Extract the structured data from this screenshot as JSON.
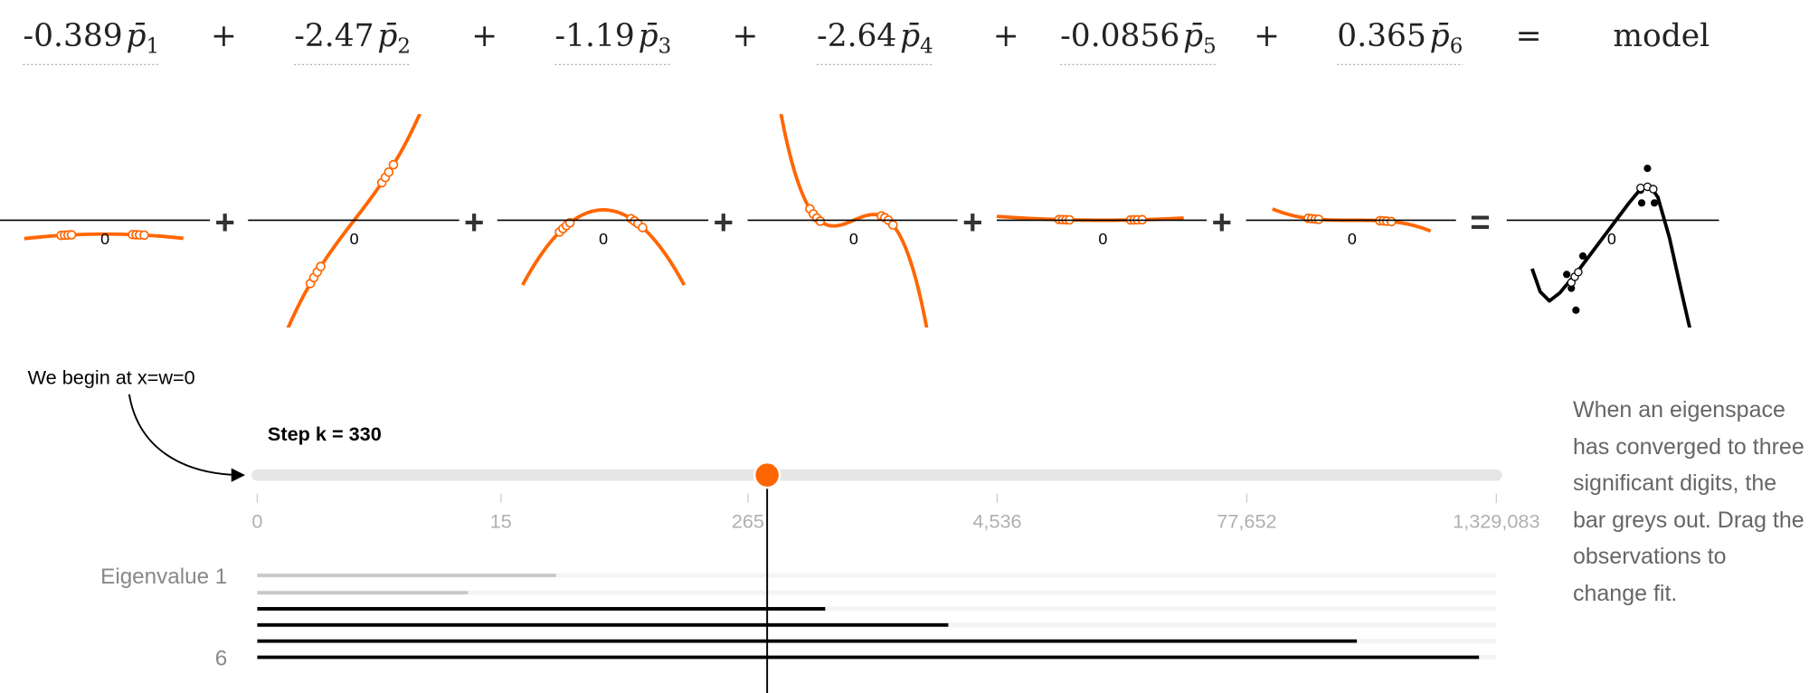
{
  "equation": {
    "terms": [
      {
        "coefficient": -0.389,
        "symbol": "p̄",
        "subscript": 1
      },
      {
        "coefficient": -2.47,
        "symbol": "p̄",
        "subscript": 2
      },
      {
        "coefficient": -1.19,
        "symbol": "p̄",
        "subscript": 3
      },
      {
        "coefficient": -2.64,
        "symbol": "p̄",
        "subscript": 4
      },
      {
        "coefficient": -0.0856,
        "symbol": "p̄",
        "subscript": 5
      },
      {
        "coefficient": 0.365,
        "symbol": "p̄",
        "subscript": 6
      }
    ],
    "plus": "+",
    "equals": "=",
    "result": "model"
  },
  "plots": {
    "zero_label": "0",
    "plus": "+",
    "equals": "="
  },
  "annotation": "We begin at x=w=0",
  "slider": {
    "label": "Step k = 330",
    "value": 330
  },
  "chart_data": {
    "type": "bar",
    "orientation": "horizontal",
    "categories": [
      "Eigenvalue 1",
      null,
      null,
      null,
      null,
      "6"
    ],
    "values": [
      29,
      10,
      640,
      2600,
      271800,
      1091000
    ],
    "colors": [
      "#c8c8c8",
      "#c8c8c8",
      "#000000",
      "#000000",
      "#000000",
      "#000000"
    ],
    "xlim": [
      0,
      1329083
    ],
    "xticks": [
      0,
      15,
      265,
      {
        "value": 4536,
        "label": "4,536"
      },
      {
        "value": 77652,
        "label": "77,652"
      },
      {
        "value": 1329083,
        "label": "1,329,083"
      }
    ],
    "log_scale": true
  },
  "note": "When an eigenspace has converged to three significant digits, the bar greys out. Drag the observations to change fit."
}
